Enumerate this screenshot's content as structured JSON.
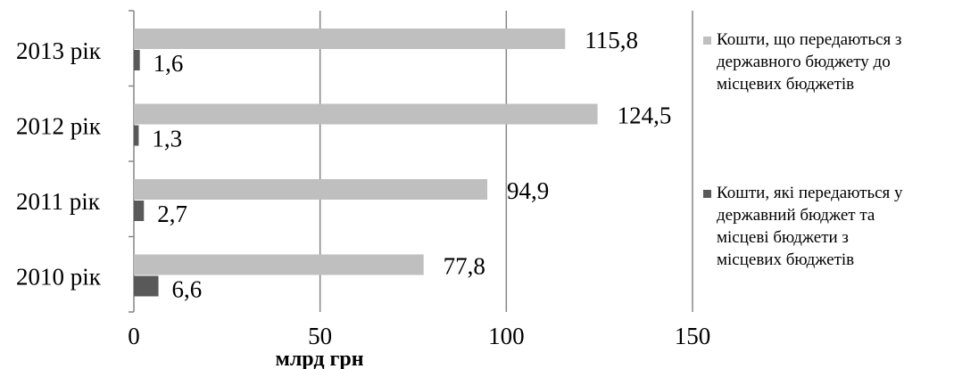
{
  "chart_data": {
    "type": "bar",
    "orientation": "horizontal",
    "categories": [
      "2013 рік",
      "2012 рік",
      "2011 рік",
      "2010 рік"
    ],
    "series": [
      {
        "name": "Кошти, що передаються з державного бюджету до місцевих бюджетів",
        "legend_lines": [
          "Кошти, що передаються з",
          "державного бюджету до",
          "місцевих бюджетів"
        ],
        "color": "#BFBFBF",
        "values": [
          115.8,
          124.5,
          94.9,
          77.8
        ],
        "labels": [
          "115,8",
          "124,5",
          "94,9",
          "77,8"
        ]
      },
      {
        "name": "Кошти, які передаються у державний бюджет та місцеві бюджети з місцевих бюджетів",
        "legend_lines": [
          "Кошти, які передаються у",
          "державний бюджет та",
          "місцеві бюджети з",
          "місцевих бюджетів"
        ],
        "color": "#595959",
        "values": [
          1.6,
          1.3,
          2.7,
          6.6
        ],
        "labels": [
          "1,6",
          "1,3",
          "2,7",
          "6,6"
        ]
      }
    ],
    "xlabel": "млрд грн",
    "xlim": [
      0,
      150
    ],
    "xticks": [
      0,
      50,
      100,
      150
    ],
    "xtick_labels": [
      "0",
      "50",
      "100",
      "150"
    ],
    "grid": "vertical",
    "legend_position": "right"
  }
}
